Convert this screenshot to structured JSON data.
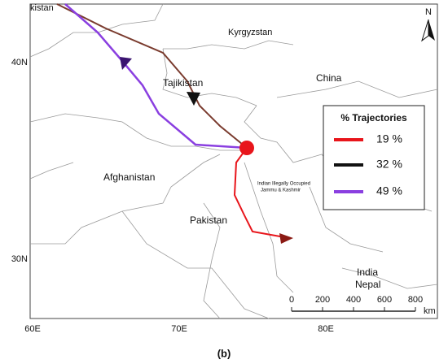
{
  "map": {
    "labels": [
      "kistan",
      "Kyrgyzstan",
      "China",
      "Tajikistan",
      "Afghanistan",
      "Pakistan",
      "India",
      "Nepal",
      "Indian Illegally Occupied",
      "Jammu & Kashmir"
    ],
    "lat_labels": [
      "40N",
      "30N"
    ],
    "lon_labels": [
      "60E",
      "70E",
      "80E"
    ],
    "north": "N"
  },
  "legend": {
    "title": "% Trajectories",
    "items": [
      {
        "label": "19 %",
        "color": "#e8151b"
      },
      {
        "label": "32 %",
        "color": "#111111"
      },
      {
        "label": "49 %",
        "color": "#8a3fe0"
      }
    ]
  },
  "scale": {
    "ticks": [
      "0",
      "200",
      "400",
      "600",
      "800"
    ],
    "unit": "km"
  },
  "caption": "(b)"
}
